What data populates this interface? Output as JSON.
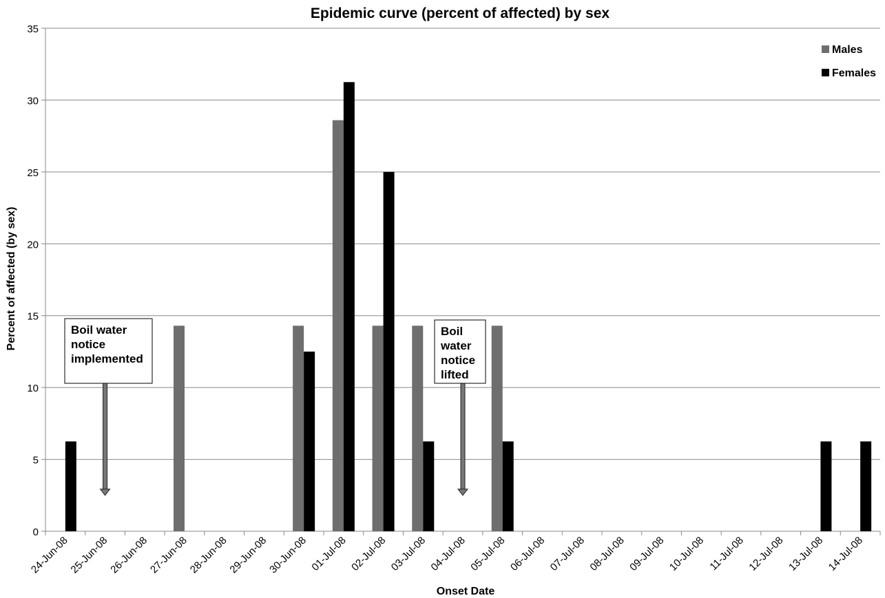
{
  "chart_data": {
    "type": "bar",
    "title": "Epidemic curve (percent of affected) by sex",
    "xlabel": "Onset Date",
    "ylabel": "Percent of affected (by sex)",
    "ylim": [
      0,
      35
    ],
    "yticks": [
      0,
      5,
      10,
      15,
      20,
      25,
      30,
      35
    ],
    "grid": "horizontal",
    "legend_position": "top-right",
    "categories": [
      "24-Jun-08",
      "25-Jun-08",
      "26-Jun-08",
      "27-Jun-08",
      "28-Jun-08",
      "29-Jun-08",
      "30-Jun-08",
      "01-Jul-08",
      "02-Jul-08",
      "03-Jul-08",
      "04-Jul-08",
      "05-Jul-08",
      "06-Jul-08",
      "07-Jul-08",
      "08-Jul-08",
      "09-Jul-08",
      "10-Jul-08",
      "11-Jul-08",
      "12-Jul-08",
      "13-Jul-08",
      "14-Jul-08"
    ],
    "series": [
      {
        "name": "Males",
        "color": "#6e6e6e",
        "values": [
          0,
          0,
          0,
          14.3,
          0,
          0,
          14.3,
          28.6,
          14.3,
          14.3,
          0,
          14.3,
          0,
          0,
          0,
          0,
          0,
          0,
          0,
          0,
          0
        ]
      },
      {
        "name": "Females",
        "color": "#000000",
        "values": [
          6.25,
          0,
          0,
          0,
          0,
          0,
          12.5,
          31.25,
          25,
          6.25,
          0,
          6.25,
          0,
          0,
          0,
          0,
          0,
          0,
          0,
          6.25,
          6.25
        ]
      }
    ],
    "annotations": [
      {
        "lines": [
          "Boil water",
          "notice",
          "implemented"
        ],
        "category": "25-Jun-08",
        "arrow_to": 2.5
      },
      {
        "lines": [
          "Boil",
          "water",
          "notice",
          "lifted"
        ],
        "category": "04-Jul-08",
        "arrow_to": 2.5
      }
    ]
  }
}
